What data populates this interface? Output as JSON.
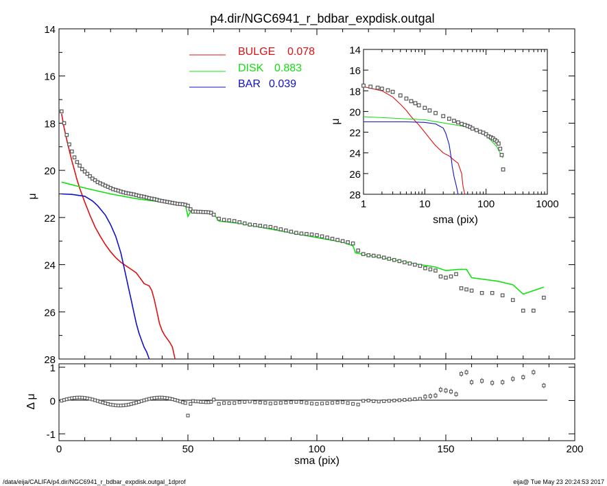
{
  "title": "p4.dir/NGC6941_r_bdbar_expdisk.outgal",
  "footer_left": "/data/eija/CALIFA/p4.dir/NGC6941_r_bdbar_expdisk.outgal_1dprof",
  "footer_right": "eija@  Tue May 23 20:24:53 2017",
  "colors": {
    "bulge": "#e01010",
    "disk": "#10e010",
    "bar": "#1010c8",
    "data": "#555555"
  },
  "chart_data": [
    {
      "id": "main",
      "type": "line",
      "xlabel": "sma (pix)",
      "ylabel": "μ",
      "xlim": [
        0,
        200
      ],
      "ylim": [
        28,
        14
      ],
      "x_ticks": [
        0,
        50,
        100,
        150,
        200
      ],
      "y_ticks": [
        14,
        16,
        18,
        20,
        22,
        24,
        26,
        28
      ],
      "legend": [
        {
          "name": "BULGE",
          "value": "0.078",
          "color": "#e01010"
        },
        {
          "name": "DISK",
          "value": "0.883",
          "color": "#10e010"
        },
        {
          "name": "BAR",
          "value": "0.039",
          "color": "#1010c8"
        }
      ],
      "data_points": {
        "x": [
          1,
          2,
          3,
          4,
          5,
          6,
          7,
          8,
          9,
          10,
          11,
          12,
          13,
          14,
          15,
          16,
          17,
          18,
          19,
          20,
          21,
          22,
          23,
          24,
          25,
          26,
          27,
          28,
          29,
          30,
          31,
          32,
          33,
          34,
          35,
          36,
          37,
          38,
          39,
          40,
          41,
          42,
          43,
          44,
          45,
          46,
          47,
          48,
          49,
          50,
          51,
          52,
          53,
          54,
          55,
          56,
          57,
          58,
          59,
          60,
          62,
          64,
          66,
          68,
          70,
          72,
          74,
          76,
          78,
          80,
          82,
          84,
          86,
          88,
          90,
          92,
          94,
          96,
          98,
          100,
          102,
          104,
          106,
          108,
          110,
          112,
          114,
          116,
          118,
          120,
          122,
          124,
          126,
          128,
          130,
          132,
          134,
          136,
          138,
          140,
          142,
          144,
          146,
          148,
          150,
          152,
          154,
          156,
          158,
          160,
          164,
          168,
          172,
          176,
          180,
          184,
          188
        ],
        "y": [
          17.5,
          18.0,
          18.5,
          18.9,
          19.2,
          19.45,
          19.65,
          19.8,
          19.95,
          20.05,
          20.15,
          20.25,
          20.35,
          20.42,
          20.5,
          20.55,
          20.6,
          20.65,
          20.7,
          20.75,
          20.8,
          20.83,
          20.86,
          20.9,
          20.93,
          20.96,
          20.98,
          21.0,
          21.02,
          21.05,
          21.08,
          21.1,
          21.12,
          21.15,
          21.18,
          21.2,
          21.22,
          21.25,
          21.28,
          21.3,
          21.32,
          21.34,
          21.36,
          21.38,
          21.4,
          21.42,
          21.43,
          21.44,
          21.46,
          21.5,
          21.65,
          21.75,
          21.75,
          21.76,
          21.76,
          21.77,
          21.77,
          21.78,
          21.8,
          21.88,
          22.05,
          22.1,
          22.12,
          22.15,
          22.2,
          22.25,
          22.3,
          22.32,
          22.35,
          22.38,
          22.4,
          22.45,
          22.5,
          22.55,
          22.6,
          22.65,
          22.68,
          22.7,
          22.72,
          22.75,
          22.8,
          22.85,
          22.9,
          22.95,
          23.0,
          23.05,
          23.1,
          23.4,
          23.55,
          23.6,
          23.62,
          23.65,
          23.7,
          23.75,
          23.8,
          23.85,
          23.9,
          23.95,
          24.0,
          24.05,
          24.15,
          24.2,
          24.25,
          24.5,
          24.55,
          24.5,
          24.4,
          25.0,
          25.05,
          25.1,
          25.2,
          25.2,
          25.3,
          25.5,
          25.95,
          25.95,
          25.4
        ]
      },
      "series": [
        {
          "name": "BULGE",
          "x": [
            1,
            2,
            3,
            4,
            5,
            6,
            7,
            8,
            9,
            10,
            12,
            14,
            16,
            18,
            20,
            22,
            24,
            26,
            28,
            30,
            31,
            32,
            33,
            34,
            35,
            36,
            37,
            38,
            39,
            40,
            41,
            42,
            43,
            44,
            45
          ],
          "y": [
            17.6,
            18.2,
            18.7,
            19.15,
            19.6,
            20.0,
            20.4,
            20.75,
            21.05,
            21.35,
            21.9,
            22.4,
            22.8,
            23.15,
            23.45,
            23.7,
            23.9,
            24.05,
            24.2,
            24.35,
            24.5,
            24.65,
            24.8,
            24.85,
            24.9,
            25.1,
            25.5,
            26.0,
            26.5,
            26.8,
            27.0,
            27.15,
            27.3,
            27.5,
            28.0
          ]
        },
        {
          "name": "DISK",
          "x": [
            1,
            10,
            20,
            30,
            40,
            49,
            50,
            51,
            55,
            60,
            62,
            70,
            80,
            90,
            100,
            110,
            114,
            115,
            120,
            130,
            140,
            146,
            150,
            155,
            158,
            160,
            170,
            176,
            180,
            184,
            188
          ],
          "y": [
            20.5,
            20.75,
            21.0,
            21.2,
            21.35,
            21.45,
            21.95,
            21.75,
            21.8,
            21.85,
            22.15,
            22.25,
            22.45,
            22.65,
            22.85,
            23.05,
            23.2,
            23.5,
            23.6,
            23.8,
            24.0,
            24.1,
            24.25,
            24.2,
            24.2,
            24.55,
            24.7,
            24.85,
            25.25,
            25.1,
            24.95
          ]
        },
        {
          "name": "BAR",
          "x": [
            1,
            5,
            10,
            13,
            15,
            18,
            20,
            22,
            24,
            25,
            26,
            27,
            28,
            29,
            30,
            31,
            32,
            33,
            34,
            35
          ],
          "y": [
            21.0,
            21.02,
            21.1,
            21.3,
            21.5,
            21.9,
            22.3,
            22.8,
            23.5,
            24.0,
            24.5,
            25.0,
            25.5,
            26.0,
            26.5,
            26.9,
            27.2,
            27.5,
            27.7,
            28.0
          ]
        }
      ]
    },
    {
      "id": "residual",
      "type": "scatter",
      "xlabel": "sma (pix)",
      "ylabel": "Δ μ",
      "xlim": [
        0,
        200
      ],
      "ylim": [
        -1,
        1
      ],
      "y_ticks": [
        -1,
        0,
        1
      ],
      "reference_line": 0
    },
    {
      "id": "inset",
      "type": "line",
      "xlabel": "sma (pix)",
      "ylabel": "μ",
      "xscale": "log",
      "xlim": [
        1,
        1000
      ],
      "ylim": [
        28,
        14
      ],
      "x_ticks": [
        1,
        10,
        100,
        1000
      ],
      "x_tick_labels": [
        "1",
        "10",
        "100",
        "1000"
      ],
      "y_ticks": [
        14,
        16,
        18,
        20,
        22,
        24,
        26,
        28
      ],
      "data_points": {
        "x": [
          1,
          1.3,
          1.7,
          2,
          2.5,
          3,
          4,
          5,
          6,
          7,
          8,
          10,
          12,
          15,
          20,
          25,
          30,
          35,
          40,
          45,
          50,
          55,
          60,
          70,
          80,
          90,
          100,
          110,
          120,
          130,
          140,
          150,
          160,
          170,
          180,
          190
        ],
        "y": [
          17.5,
          17.6,
          17.7,
          17.8,
          17.95,
          18.1,
          18.45,
          18.75,
          19.0,
          19.2,
          19.4,
          19.65,
          19.9,
          20.15,
          20.45,
          20.7,
          20.9,
          21.05,
          21.2,
          21.3,
          21.4,
          21.5,
          21.65,
          21.8,
          21.95,
          22.05,
          22.2,
          22.4,
          22.5,
          22.6,
          22.75,
          22.9,
          23.1,
          23.6,
          24.2,
          25.6
        ]
      },
      "series": [
        {
          "name": "BULGE",
          "x": [
            1,
            2,
            3,
            4,
            5,
            6,
            8,
            10,
            12,
            15,
            20,
            25,
            30,
            35,
            40,
            42,
            45
          ],
          "y": [
            17.6,
            18.0,
            18.6,
            19.3,
            19.9,
            20.5,
            21.3,
            22.0,
            22.6,
            23.3,
            24.0,
            24.3,
            24.7,
            25.0,
            26.0,
            27.2,
            28.0
          ]
        },
        {
          "name": "DISK",
          "x": [
            1,
            10,
            50,
            100,
            150,
            188
          ],
          "y": [
            20.5,
            20.8,
            21.5,
            22.3,
            23.4,
            24.5
          ]
        },
        {
          "name": "BAR",
          "x": [
            1,
            5,
            10,
            15,
            20,
            22,
            25,
            27,
            28,
            30,
            33,
            35
          ],
          "y": [
            21.0,
            21.0,
            21.05,
            21.2,
            21.6,
            22.1,
            23.2,
            24.5,
            25.3,
            26.3,
            27.3,
            28.0
          ]
        }
      ]
    }
  ]
}
